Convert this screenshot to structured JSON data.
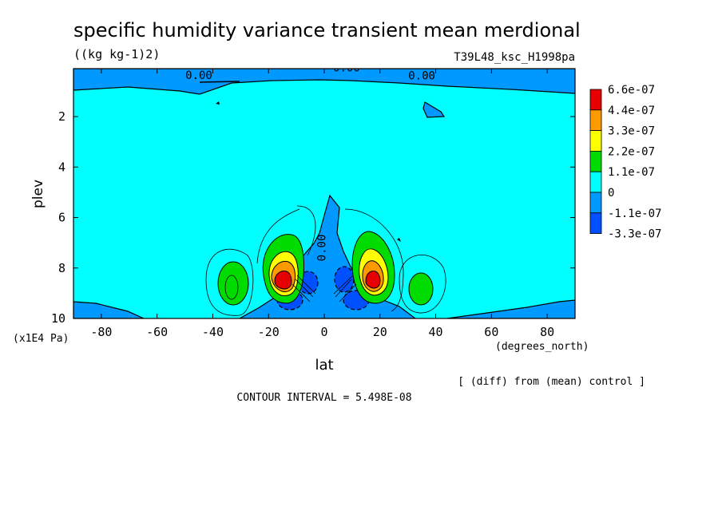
{
  "chart_data": {
    "type": "contour",
    "title": "specific humidity variance transient mean merdional",
    "units": "((kg kg-1)2)",
    "run_label": "T39L48_ksc_H1998pa",
    "xlabel": "lat",
    "x_units": "(degrees_north)",
    "ylabel": "plev",
    "y_units": "(x1E4 Pa)",
    "xlim": [
      -90,
      90
    ],
    "ylim": [
      10,
      0.1
    ],
    "x_ticks": [
      {
        "v": -80,
        "label": "-80"
      },
      {
        "v": -60,
        "label": "-60"
      },
      {
        "v": -40,
        "label": "-40"
      },
      {
        "v": -20,
        "label": "-20"
      },
      {
        "v": 0,
        "label": "0"
      },
      {
        "v": 20,
        "label": "20"
      },
      {
        "v": 40,
        "label": "40"
      },
      {
        "v": 60,
        "label": "60"
      },
      {
        "v": 80,
        "label": "80"
      }
    ],
    "y_ticks": [
      {
        "v": 2,
        "label": "2"
      },
      {
        "v": 4,
        "label": "4"
      },
      {
        "v": 6,
        "label": "6"
      },
      {
        "v": 8,
        "label": "8"
      },
      {
        "v": 10,
        "label": "10"
      }
    ],
    "contour_labels": [
      {
        "text": "0.00",
        "lat": -45,
        "p": 0.35
      },
      {
        "text": "0.00",
        "lat": 8,
        "p": 0.05
      },
      {
        "text": "0.00",
        "lat": 35,
        "p": 0.37
      },
      {
        "text": "0.00",
        "lat": -1,
        "p": 7.2,
        "rotate": -90
      }
    ],
    "legend": {
      "position": "right",
      "colors": [
        "#e60000",
        "#ff9900",
        "#ffff00",
        "#00dc00",
        "#00ffff",
        "#0099ff",
        "#0050ff"
      ],
      "labels": [
        "6.6e-07",
        "4.4e-07",
        "3.3e-07",
        "2.2e-07",
        "1.1e-07",
        "0",
        "-1.1e-07",
        "-3.3e-07"
      ]
    },
    "contour_interval": "CONTOUR INTERVAL = 5.498E-08",
    "note": "[ (diff) from (mean) control ]"
  }
}
